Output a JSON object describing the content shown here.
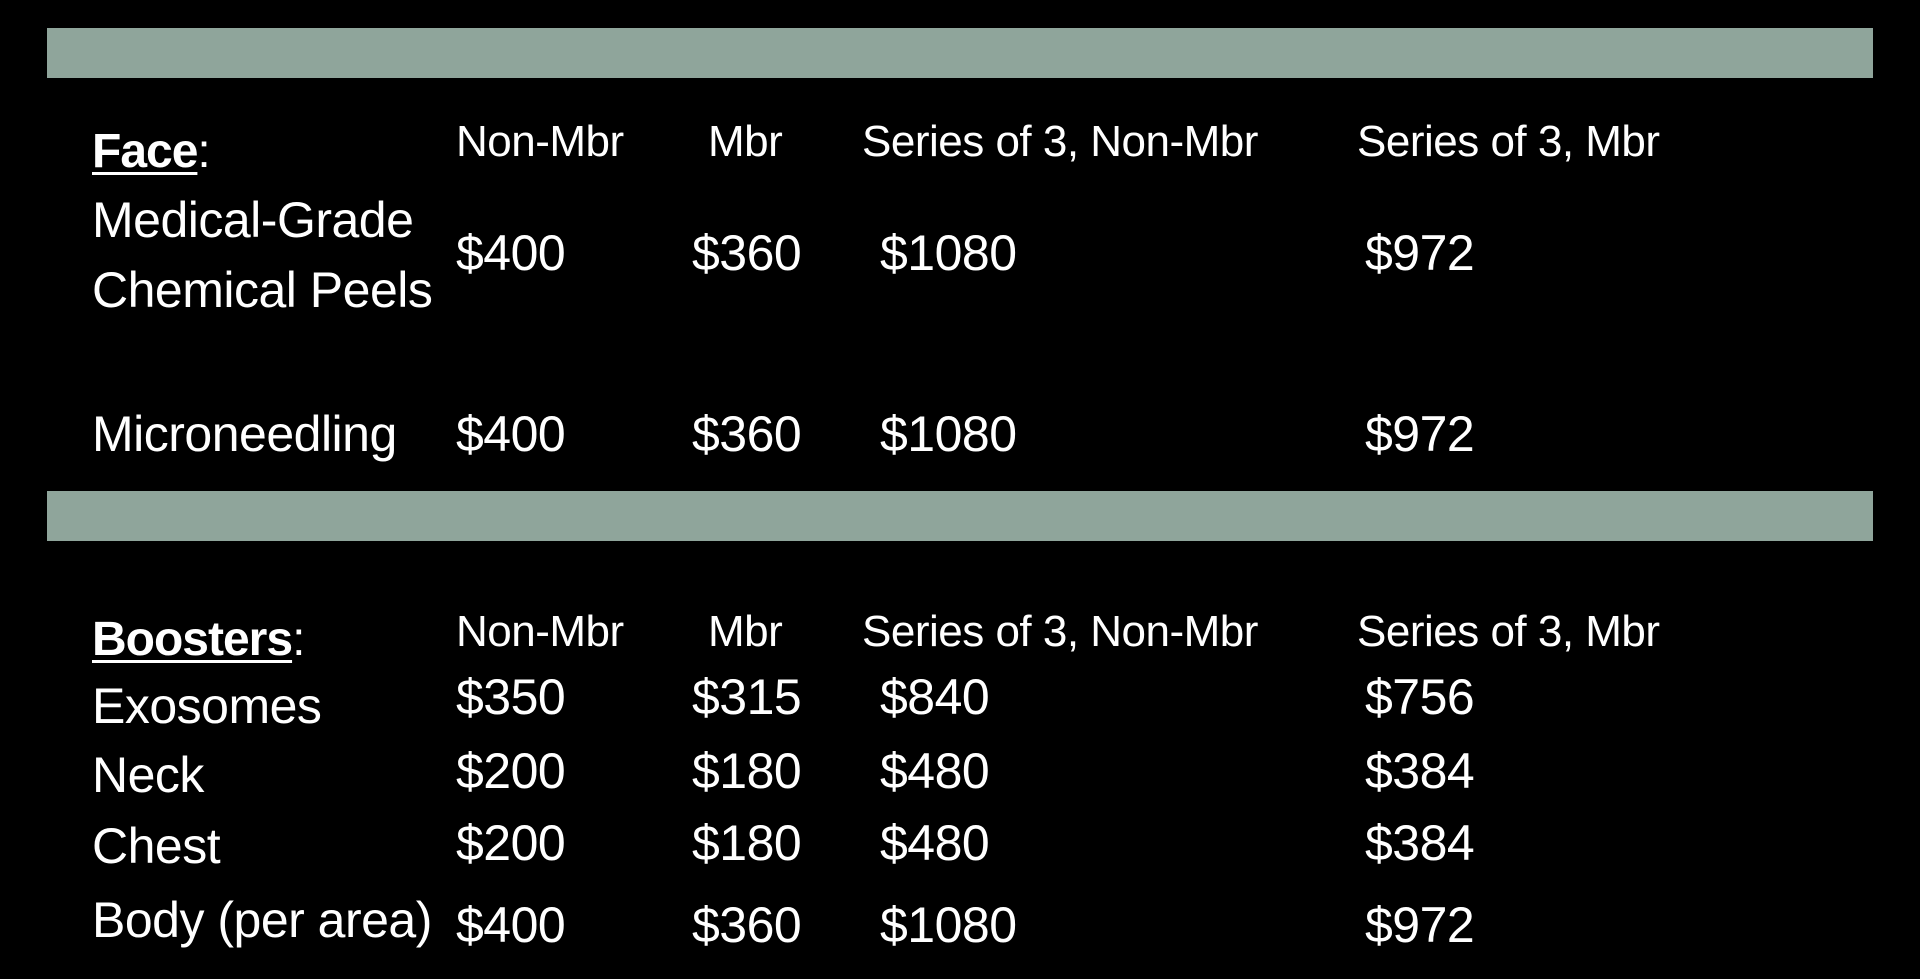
{
  "colors": {
    "band": "#8fa59b",
    "background": "#000000",
    "text": "#ffffff"
  },
  "columns": [
    "Non-Mbr",
    "Mbr",
    "Series of 3, Non-Mbr",
    "Series of 3, Mbr"
  ],
  "face": {
    "title": "Face",
    "colon": ":",
    "rows": [
      {
        "label_line1": "Medical-Grade",
        "label_line2": "Chemical Peels",
        "prices": [
          "$400",
          "$360",
          "$1080",
          "$972"
        ]
      },
      {
        "label_line1": "Microneedling",
        "prices": [
          "$400",
          "$360",
          "$1080",
          "$972"
        ]
      }
    ]
  },
  "boosters": {
    "title": "Boosters",
    "colon": ":",
    "rows": [
      {
        "label_line1": "Exosomes",
        "prices": [
          "$350",
          "$315",
          "$840",
          "$756"
        ]
      },
      {
        "label_line1": "Neck",
        "prices": [
          "$200",
          "$180",
          "$480",
          "$384"
        ]
      },
      {
        "label_line1": "Chest",
        "prices": [
          "$200",
          "$180",
          "$480",
          "$384"
        ]
      },
      {
        "label_line1": "Body (per area)",
        "prices": [
          "$400",
          "$360",
          "$1080",
          "$972"
        ]
      }
    ]
  }
}
